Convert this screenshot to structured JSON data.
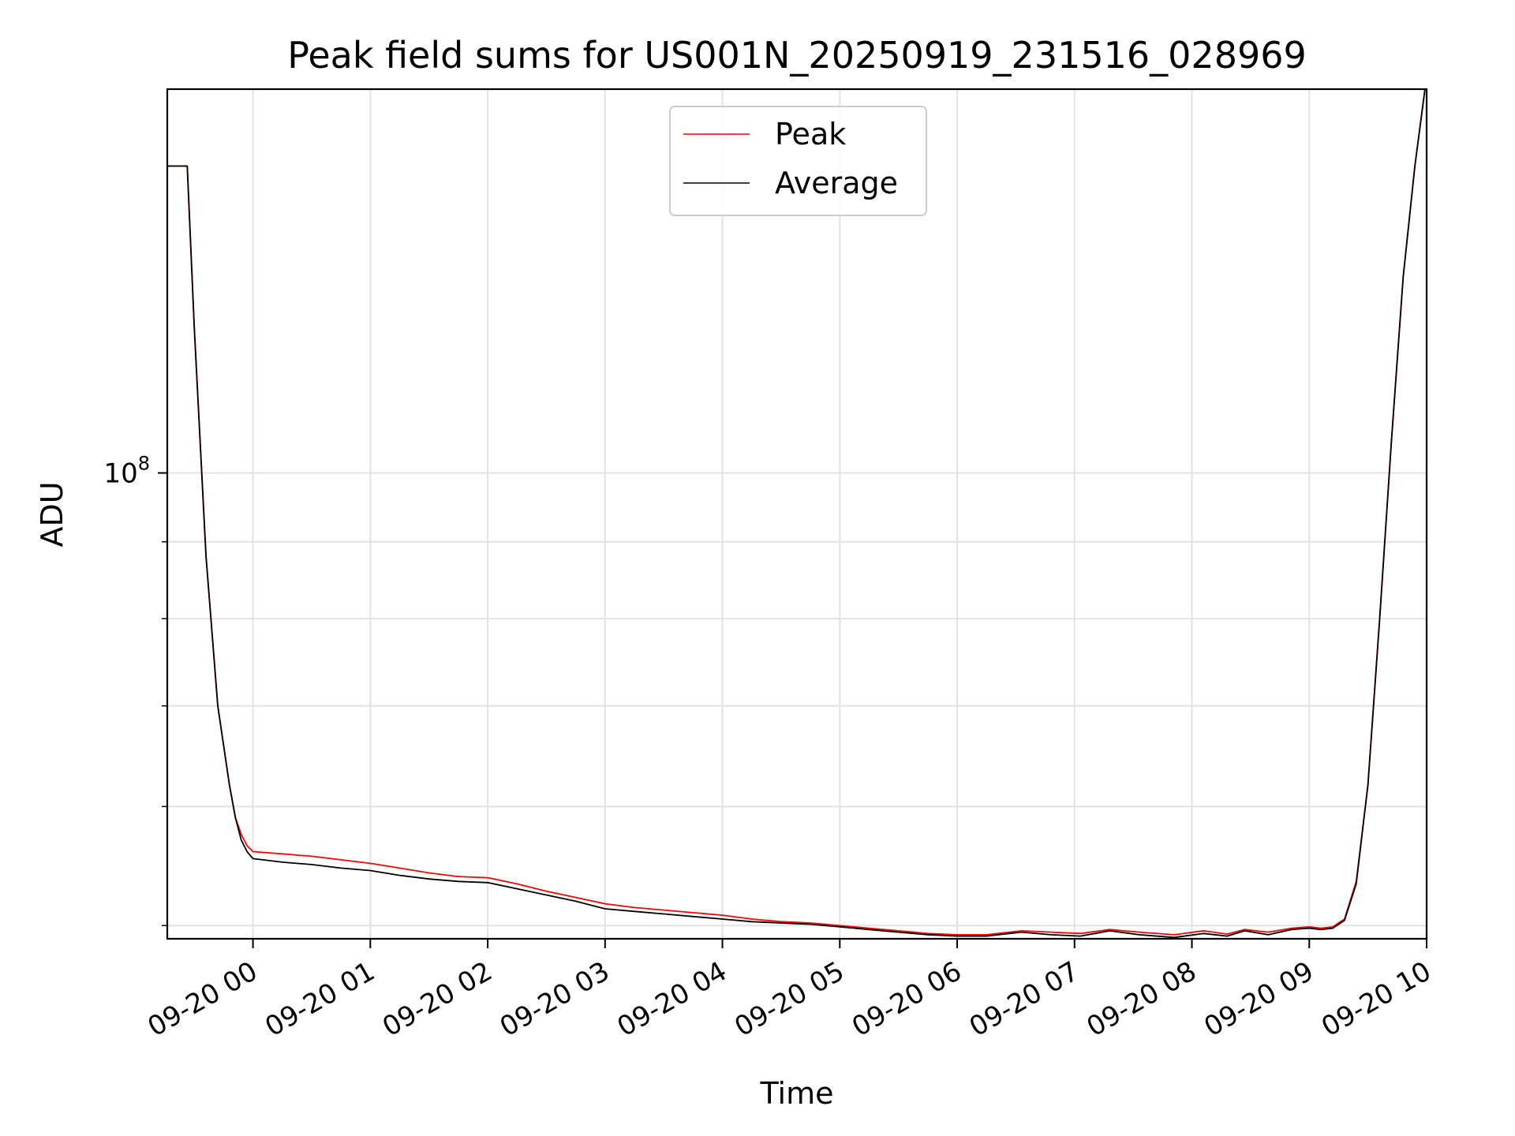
{
  "chart_data": {
    "type": "line",
    "title": "Peak field sums for US001N_20250919_231516_028969",
    "xlabel": "Time",
    "ylabel": "ADU",
    "yscale": "log",
    "ylim": [
      49000000,
      180000000
    ],
    "xlim_hours": [
      -0.73,
      10.0
    ],
    "y_major_tick_label": "10^8",
    "y_major_tick_value": 100000000,
    "y_minor_ticks": [
      50000000,
      60000000,
      70000000,
      80000000,
      90000000
    ],
    "x_ticks": [
      {
        "hour": 0,
        "label": "09-20 00"
      },
      {
        "hour": 1,
        "label": "09-20 01"
      },
      {
        "hour": 2,
        "label": "09-20 02"
      },
      {
        "hour": 3,
        "label": "09-20 03"
      },
      {
        "hour": 4,
        "label": "09-20 04"
      },
      {
        "hour": 5,
        "label": "09-20 05"
      },
      {
        "hour": 6,
        "label": "09-20 06"
      },
      {
        "hour": 7,
        "label": "09-20 07"
      },
      {
        "hour": 8,
        "label": "09-20 08"
      },
      {
        "hour": 9,
        "label": "09-20 09"
      },
      {
        "hour": 10,
        "label": "09-20 10"
      }
    ],
    "grid": true,
    "legend_position": "top-center",
    "series": [
      {
        "name": "Peak",
        "color": "#ff0000",
        "x": [
          -0.73,
          -0.56,
          -0.5,
          -0.4,
          -0.3,
          -0.2,
          -0.15,
          -0.1,
          -0.05,
          0.0,
          0.25,
          0.5,
          0.75,
          1.0,
          1.25,
          1.5,
          1.75,
          2.0,
          2.25,
          2.5,
          2.75,
          3.0,
          3.25,
          3.5,
          3.75,
          4.0,
          4.25,
          4.5,
          4.75,
          5.0,
          5.25,
          5.5,
          5.75,
          6.0,
          6.25,
          6.55,
          6.8,
          7.05,
          7.3,
          7.55,
          7.85,
          8.1,
          8.3,
          8.45,
          8.65,
          8.85,
          9.0,
          9.1,
          9.2,
          9.3,
          9.4,
          9.5,
          9.6,
          9.7,
          9.8,
          9.9,
          9.99
        ],
        "y": [
          160000000,
          160000000,
          125000000,
          88000000,
          70000000,
          62000000,
          59000000,
          57500000,
          56500000,
          56000000,
          55800000,
          55600000,
          55300000,
          55000000,
          54600000,
          54200000,
          53900000,
          53800000,
          53300000,
          52700000,
          52200000,
          51700000,
          51400000,
          51200000,
          51000000,
          50800000,
          50500000,
          50300000,
          50200000,
          50000000,
          49800000,
          49600000,
          49400000,
          49300000,
          49300000,
          49600000,
          49500000,
          49400000,
          49700000,
          49500000,
          49300000,
          49600000,
          49350000,
          49700000,
          49500000,
          49800000,
          49900000,
          49800000,
          49900000,
          50500000,
          53500000,
          62000000,
          80000000,
          105000000,
          135000000,
          160000000,
          181000000
        ]
      },
      {
        "name": "Average",
        "color": "#000000",
        "x": [
          -0.73,
          -0.56,
          -0.5,
          -0.4,
          -0.3,
          -0.2,
          -0.15,
          -0.1,
          -0.05,
          0.0,
          0.25,
          0.5,
          0.75,
          1.0,
          1.25,
          1.5,
          1.75,
          2.0,
          2.25,
          2.5,
          2.75,
          3.0,
          3.25,
          3.5,
          3.75,
          4.0,
          4.25,
          4.5,
          4.75,
          5.0,
          5.25,
          5.5,
          5.75,
          6.0,
          6.25,
          6.55,
          6.8,
          7.05,
          7.3,
          7.55,
          7.85,
          8.1,
          8.3,
          8.45,
          8.65,
          8.85,
          9.0,
          9.1,
          9.2,
          9.3,
          9.4,
          9.5,
          9.6,
          9.7,
          9.8,
          9.9,
          9.99
        ],
        "y": [
          160000000,
          160000000,
          125000000,
          88000000,
          70000000,
          62000000,
          59000000,
          57000000,
          56000000,
          55400000,
          55100000,
          54900000,
          54600000,
          54400000,
          54000000,
          53700000,
          53500000,
          53400000,
          52900000,
          52400000,
          51900000,
          51300000,
          51100000,
          50900000,
          50700000,
          50500000,
          50300000,
          50200000,
          50100000,
          49900000,
          49700000,
          49500000,
          49300000,
          49200000,
          49200000,
          49500000,
          49300000,
          49200000,
          49600000,
          49300000,
          49100000,
          49400000,
          49200000,
          49600000,
          49300000,
          49700000,
          49800000,
          49700000,
          49800000,
          50400000,
          53300000,
          62000000,
          80000000,
          105000000,
          135000000,
          160000000,
          181000000
        ]
      }
    ]
  }
}
